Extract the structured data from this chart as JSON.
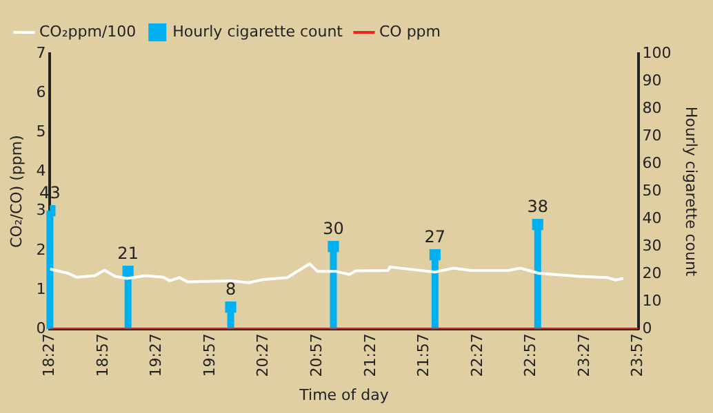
{
  "chart_data": {
    "type": "line",
    "xlabel": "Time of day",
    "ylabel": "CO₂/CO) (ppm)",
    "y2label": "Hourly cigarette count",
    "xlim": [
      18.45,
      23.95
    ],
    "xticks": [
      {
        "value": 18.45,
        "label": "18:27"
      },
      {
        "value": 18.95,
        "label": "18:57"
      },
      {
        "value": 19.45,
        "label": "19:27"
      },
      {
        "value": 19.95,
        "label": "19:57"
      },
      {
        "value": 20.45,
        "label": "20:27"
      },
      {
        "value": 20.95,
        "label": "20:57"
      },
      {
        "value": 21.45,
        "label": "21:27"
      },
      {
        "value": 21.95,
        "label": "21:57"
      },
      {
        "value": 22.45,
        "label": "22:27"
      },
      {
        "value": 22.95,
        "label": "22:57"
      },
      {
        "value": 23.45,
        "label": "23:27"
      },
      {
        "value": 23.95,
        "label": "23:57"
      }
    ],
    "ylim": [
      0,
      7
    ],
    "yticks": [
      0,
      1,
      2,
      3,
      4,
      5,
      6,
      7
    ],
    "y2lim": [
      0,
      100
    ],
    "y2ticks": [
      0,
      10,
      20,
      30,
      40,
      50,
      60,
      70,
      80,
      90,
      100
    ],
    "grid": false,
    "legend": "top left",
    "series": [
      {
        "name": "CO₂ppm/100",
        "color": "#ffffff",
        "marker": "none",
        "x": [
          18.45,
          18.62,
          18.7,
          18.87,
          18.96,
          19.06,
          19.17,
          19.34,
          19.51,
          19.57,
          19.66,
          19.74,
          20.14,
          20.31,
          20.44,
          20.67,
          20.78,
          20.88,
          20.95,
          21.12,
          21.25,
          21.31,
          21.61,
          21.63,
          22.05,
          22.22,
          22.39,
          22.73,
          22.85,
          23.02,
          23.4,
          23.66,
          23.74,
          23.81
        ],
        "values": [
          1.53,
          1.42,
          1.32,
          1.36,
          1.5,
          1.34,
          1.29,
          1.36,
          1.32,
          1.23,
          1.31,
          1.2,
          1.23,
          1.18,
          1.26,
          1.31,
          1.5,
          1.66,
          1.47,
          1.47,
          1.39,
          1.48,
          1.49,
          1.58,
          1.45,
          1.55,
          1.49,
          1.49,
          1.55,
          1.42,
          1.34,
          1.31,
          1.25,
          1.29
        ]
      },
      {
        "name": "Hourly cigarette count",
        "type": "lollipop",
        "axis": "y2",
        "color": "#00b0f0",
        "marker": "square",
        "data_labels": true,
        "x": [
          18.45,
          19.18,
          20.14,
          21.1,
          22.05,
          23.01
        ],
        "values": [
          43,
          21,
          8,
          30,
          27,
          38
        ]
      },
      {
        "name": "CO ppm",
        "color": "#e8281e",
        "marker": "none",
        "x": [
          18.45,
          23.95
        ],
        "values": [
          0,
          0
        ]
      }
    ]
  }
}
